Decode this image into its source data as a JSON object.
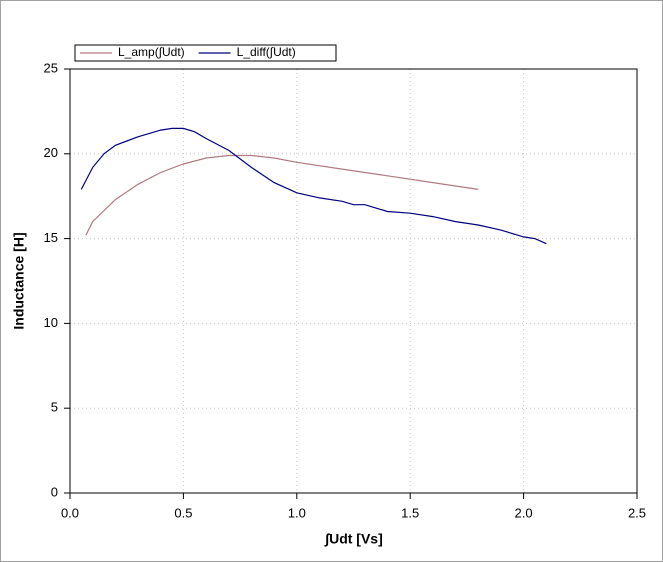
{
  "chart_data": {
    "type": "line",
    "xlabel": "∫Udt [Vs]",
    "ylabel": "Inductance [H]",
    "xlim": [
      0,
      2.5
    ],
    "ylim": [
      0,
      25
    ],
    "xticks": [
      {
        "value": 0,
        "label": "0.0"
      },
      0.5,
      {
        "value": 1,
        "label": "1.0"
      },
      1.5,
      {
        "value": 2,
        "label": "2.0"
      },
      2.5
    ],
    "yticks": [
      0,
      5,
      10,
      15,
      20,
      25
    ],
    "grid": true,
    "series": [
      {
        "name": "L_amp(∫Udt)",
        "color": "#b07a80",
        "x": [
          0.07,
          0.1,
          0.2,
          0.3,
          0.4,
          0.5,
          0.6,
          0.7,
          0.8,
          0.9,
          1.0,
          1.2,
          1.4,
          1.6,
          1.8
        ],
        "values": [
          15.2,
          16.0,
          17.3,
          18.2,
          18.9,
          19.4,
          19.75,
          19.9,
          19.9,
          19.75,
          19.5,
          19.1,
          18.7,
          18.3,
          17.9
        ]
      },
      {
        "name": "L_diff(∫Udt)",
        "color": "#000080",
        "x": [
          0.05,
          0.1,
          0.15,
          0.2,
          0.3,
          0.4,
          0.45,
          0.5,
          0.55,
          0.6,
          0.7,
          0.8,
          0.9,
          1.0,
          1.1,
          1.2,
          1.25,
          1.3,
          1.4,
          1.5,
          1.6,
          1.7,
          1.8,
          1.9,
          2.0,
          2.05,
          2.1
        ],
        "values": [
          17.9,
          19.2,
          20.0,
          20.5,
          21.0,
          21.4,
          21.5,
          21.5,
          21.3,
          20.9,
          20.2,
          19.2,
          18.3,
          17.7,
          17.4,
          17.2,
          17.0,
          17.0,
          16.6,
          16.5,
          16.3,
          16.0,
          15.8,
          15.5,
          15.1,
          15.0,
          14.7
        ]
      }
    ]
  }
}
